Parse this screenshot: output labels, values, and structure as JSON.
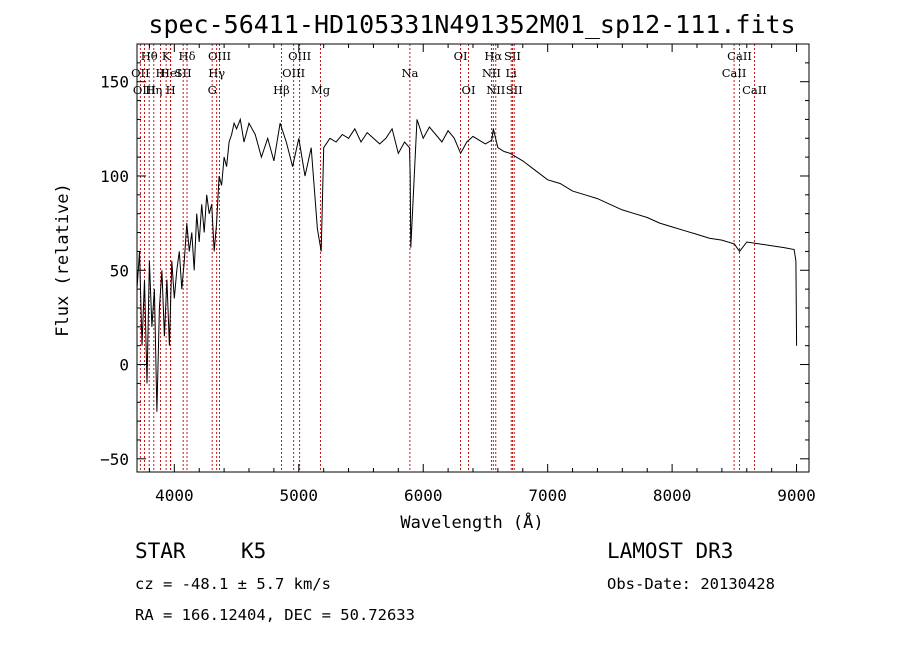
{
  "chart_data": {
    "type": "line",
    "title": "spec-56411-HD105331N491352M01_sp12-111.fits",
    "xlabel": "Wavelength (Å)",
    "ylabel": "Flux (relative)",
    "xlim": [
      3700,
      9100
    ],
    "ylim": [
      -57,
      170
    ],
    "xticks": [
      4000,
      5000,
      6000,
      7000,
      8000,
      9000
    ],
    "yticks": [
      -50,
      0,
      50,
      100,
      150
    ],
    "series": [
      {
        "name": "spectrum",
        "x": [
          3700,
          3720,
          3740,
          3760,
          3780,
          3800,
          3820,
          3840,
          3860,
          3880,
          3900,
          3920,
          3940,
          3960,
          3980,
          4000,
          4020,
          4040,
          4060,
          4080,
          4100,
          4120,
          4140,
          4160,
          4180,
          4200,
          4220,
          4240,
          4260,
          4280,
          4300,
          4320,
          4340,
          4360,
          4380,
          4400,
          4420,
          4440,
          4460,
          4480,
          4500,
          4530,
          4560,
          4600,
          4650,
          4700,
          4750,
          4800,
          4850,
          4900,
          4950,
          5000,
          5050,
          5100,
          5150,
          5180,
          5200,
          5250,
          5300,
          5350,
          5400,
          5450,
          5500,
          5550,
          5600,
          5650,
          5700,
          5750,
          5800,
          5850,
          5890,
          5895,
          5900,
          5950,
          6000,
          6050,
          6100,
          6150,
          6200,
          6250,
          6300,
          6350,
          6400,
          6450,
          6500,
          6550,
          6563,
          6600,
          6650,
          6700,
          6800,
          6900,
          7000,
          7100,
          7200,
          7300,
          7400,
          7500,
          7600,
          7700,
          7800,
          7900,
          8000,
          8100,
          8200,
          8300,
          8400,
          8500,
          8542,
          8600,
          8700,
          8800,
          8900,
          8980,
          8995,
          9000
        ],
        "y": [
          40,
          60,
          10,
          45,
          -10,
          55,
          20,
          40,
          -25,
          30,
          50,
          15,
          45,
          10,
          55,
          35,
          50,
          60,
          40,
          55,
          75,
          60,
          70,
          50,
          80,
          65,
          85,
          70,
          90,
          80,
          85,
          60,
          75,
          100,
          95,
          110,
          105,
          118,
          122,
          128,
          125,
          130,
          118,
          128,
          122,
          110,
          120,
          108,
          128,
          118,
          105,
          120,
          100,
          115,
          72,
          60,
          115,
          120,
          118,
          122,
          120,
          125,
          118,
          123,
          120,
          117,
          120,
          125,
          112,
          118,
          115,
          100,
          62,
          130,
          120,
          126,
          122,
          118,
          124,
          120,
          112,
          118,
          121,
          119,
          117,
          119,
          125,
          115,
          113,
          112,
          108,
          103,
          98,
          96,
          92,
          90,
          88,
          85,
          82,
          80,
          78,
          75,
          73,
          71,
          69,
          67,
          66,
          64,
          60,
          65,
          64,
          63,
          62,
          61,
          55,
          10
        ]
      }
    ],
    "spectral_lines": [
      {
        "label": "Hθ",
        "x": 3798,
        "row": 0
      },
      {
        "label": "K",
        "x": 3934,
        "row": 0
      },
      {
        "label": "Hδ",
        "x": 4102,
        "row": 0
      },
      {
        "label": "OIII",
        "x": 4363,
        "row": 0
      },
      {
        "label": "OIII",
        "x": 5007,
        "row": 0
      },
      {
        "label": "OI",
        "x": 6300,
        "row": 0
      },
      {
        "label": "Hα",
        "x": 6563,
        "row": 0
      },
      {
        "label": "SII",
        "x": 6717,
        "row": 0
      },
      {
        "label": "CaII",
        "x": 8542,
        "row": 0
      },
      {
        "label": "OII",
        "x": 3727,
        "row": 1
      },
      {
        "label": "H",
        "x": 3889,
        "row": 1
      },
      {
        "label": "HeI",
        "x": 3970,
        "row": 1
      },
      {
        "label": "SII",
        "x": 4071,
        "row": 1
      },
      {
        "label": "Hγ",
        "x": 4340,
        "row": 1
      },
      {
        "label": "OIII",
        "x": 4959,
        "row": 1
      },
      {
        "label": "Na",
        "x": 5893,
        "row": 1
      },
      {
        "label": "NII",
        "x": 6548,
        "row": 1
      },
      {
        "label": "Li",
        "x": 6707,
        "row": 1
      },
      {
        "label": "CaII",
        "x": 8498,
        "row": 1
      },
      {
        "label": "OIII",
        "x": 3760,
        "row": 2
      },
      {
        "label": "Hη",
        "x": 3835,
        "row": 2
      },
      {
        "label": "H",
        "x": 3970,
        "row": 2
      },
      {
        "label": "G",
        "x": 4304,
        "row": 2
      },
      {
        "label": "Hβ",
        "x": 4861,
        "row": 2
      },
      {
        "label": "Mg",
        "x": 5175,
        "row": 2
      },
      {
        "label": "OI",
        "x": 6364,
        "row": 2
      },
      {
        "label": "NII",
        "x": 6583,
        "row": 2
      },
      {
        "label": "SII",
        "x": 6731,
        "row": 2
      },
      {
        "label": "CaII",
        "x": 8662,
        "row": 2
      }
    ]
  },
  "info": {
    "object_class": "STAR",
    "subclass": "K5",
    "survey": "LAMOST DR3",
    "redshift": "cz = -48.1 ± 5.7 km/s",
    "obs_date": "Obs-Date: 20130428",
    "coords": "RA = 166.12404, DEC =  50.72633"
  }
}
